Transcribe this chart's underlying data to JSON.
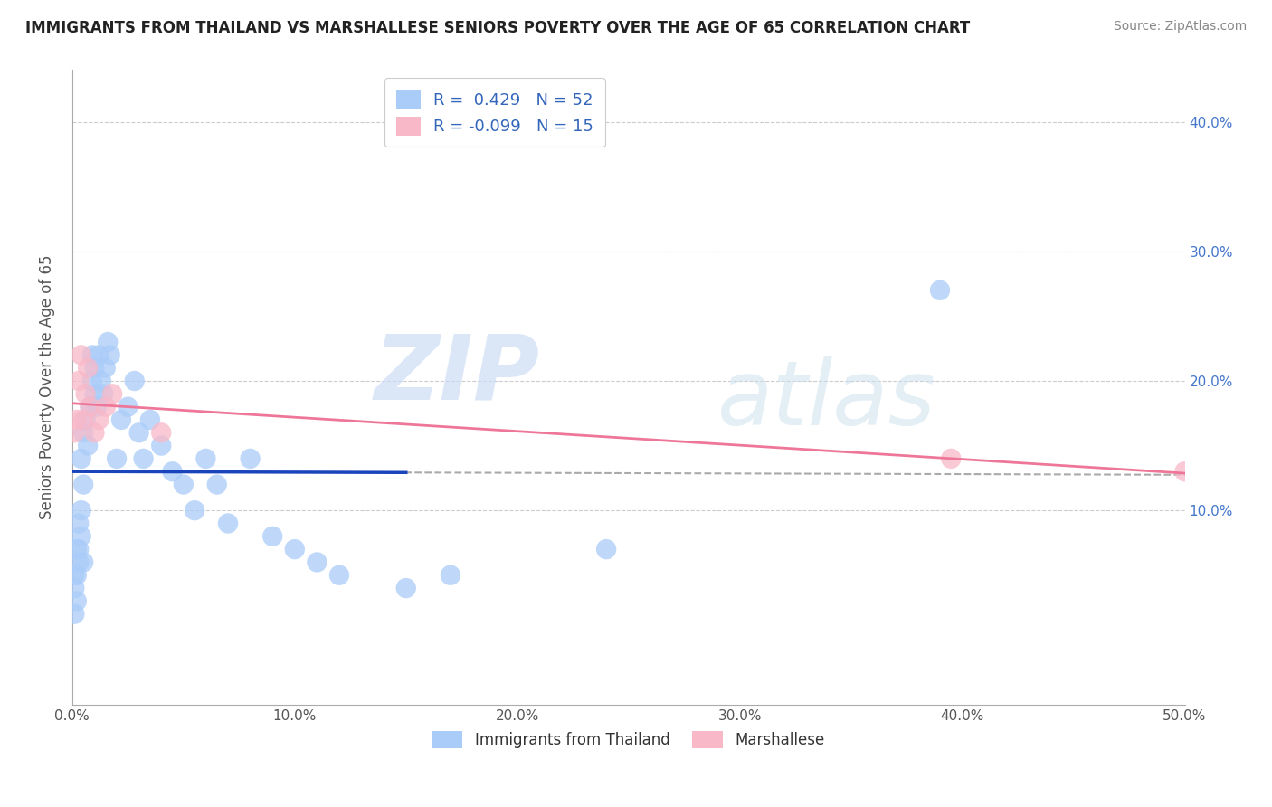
{
  "title": "IMMIGRANTS FROM THAILAND VS MARSHALLESE SENIORS POVERTY OVER THE AGE OF 65 CORRELATION CHART",
  "source": "Source: ZipAtlas.com",
  "ylabel": "Seniors Poverty Over the Age of 65",
  "xlim": [
    0.0,
    0.5
  ],
  "ylim": [
    -0.05,
    0.44
  ],
  "xticks": [
    0.0,
    0.1,
    0.2,
    0.3,
    0.4,
    0.5
  ],
  "yticks": [
    0.0,
    0.1,
    0.2,
    0.3,
    0.4
  ],
  "xticklabels": [
    "0.0%",
    "10.0%",
    "20.0%",
    "30.0%",
    "40.0%",
    "50.0%"
  ],
  "right_yticklabels": [
    "10.0%",
    "20.0%",
    "30.0%",
    "40.0%"
  ],
  "right_yticks": [
    0.1,
    0.2,
    0.3,
    0.4
  ],
  "background_color": "#ffffff",
  "grid_color": "#cccccc",
  "blue_scatter_color": "#aaccf8",
  "pink_scatter_color": "#f8b8c8",
  "blue_line_color": "#1a44bb",
  "pink_line_color": "#ee7799",
  "blue_dots": [
    [
      0.001,
      0.02
    ],
    [
      0.001,
      0.04
    ],
    [
      0.001,
      0.05
    ],
    [
      0.002,
      0.03
    ],
    [
      0.002,
      0.05
    ],
    [
      0.002,
      0.07
    ],
    [
      0.003,
      0.06
    ],
    [
      0.003,
      0.07
    ],
    [
      0.003,
      0.09
    ],
    [
      0.004,
      0.08
    ],
    [
      0.004,
      0.1
    ],
    [
      0.004,
      0.14
    ],
    [
      0.005,
      0.06
    ],
    [
      0.005,
      0.12
    ],
    [
      0.005,
      0.16
    ],
    [
      0.006,
      0.17
    ],
    [
      0.007,
      0.15
    ],
    [
      0.008,
      0.18
    ],
    [
      0.009,
      0.2
    ],
    [
      0.009,
      0.22
    ],
    [
      0.01,
      0.19
    ],
    [
      0.01,
      0.21
    ],
    [
      0.011,
      0.18
    ],
    [
      0.012,
      0.22
    ],
    [
      0.013,
      0.2
    ],
    [
      0.014,
      0.19
    ],
    [
      0.015,
      0.21
    ],
    [
      0.016,
      0.23
    ],
    [
      0.017,
      0.22
    ],
    [
      0.02,
      0.14
    ],
    [
      0.022,
      0.17
    ],
    [
      0.025,
      0.18
    ],
    [
      0.028,
      0.2
    ],
    [
      0.03,
      0.16
    ],
    [
      0.032,
      0.14
    ],
    [
      0.035,
      0.17
    ],
    [
      0.04,
      0.15
    ],
    [
      0.045,
      0.13
    ],
    [
      0.05,
      0.12
    ],
    [
      0.055,
      0.1
    ],
    [
      0.06,
      0.14
    ],
    [
      0.065,
      0.12
    ],
    [
      0.07,
      0.09
    ],
    [
      0.08,
      0.14
    ],
    [
      0.09,
      0.08
    ],
    [
      0.1,
      0.07
    ],
    [
      0.11,
      0.06
    ],
    [
      0.12,
      0.05
    ],
    [
      0.15,
      0.04
    ],
    [
      0.17,
      0.05
    ],
    [
      0.24,
      0.07
    ],
    [
      0.39,
      0.27
    ]
  ],
  "pink_dots": [
    [
      0.001,
      0.16
    ],
    [
      0.002,
      0.17
    ],
    [
      0.003,
      0.2
    ],
    [
      0.004,
      0.22
    ],
    [
      0.005,
      0.17
    ],
    [
      0.006,
      0.19
    ],
    [
      0.007,
      0.21
    ],
    [
      0.008,
      0.18
    ],
    [
      0.01,
      0.16
    ],
    [
      0.012,
      0.17
    ],
    [
      0.015,
      0.18
    ],
    [
      0.018,
      0.19
    ],
    [
      0.04,
      0.16
    ],
    [
      0.395,
      0.14
    ],
    [
      0.5,
      0.13
    ]
  ],
  "watermark_zip": "ZIP",
  "watermark_atlas": "atlas"
}
